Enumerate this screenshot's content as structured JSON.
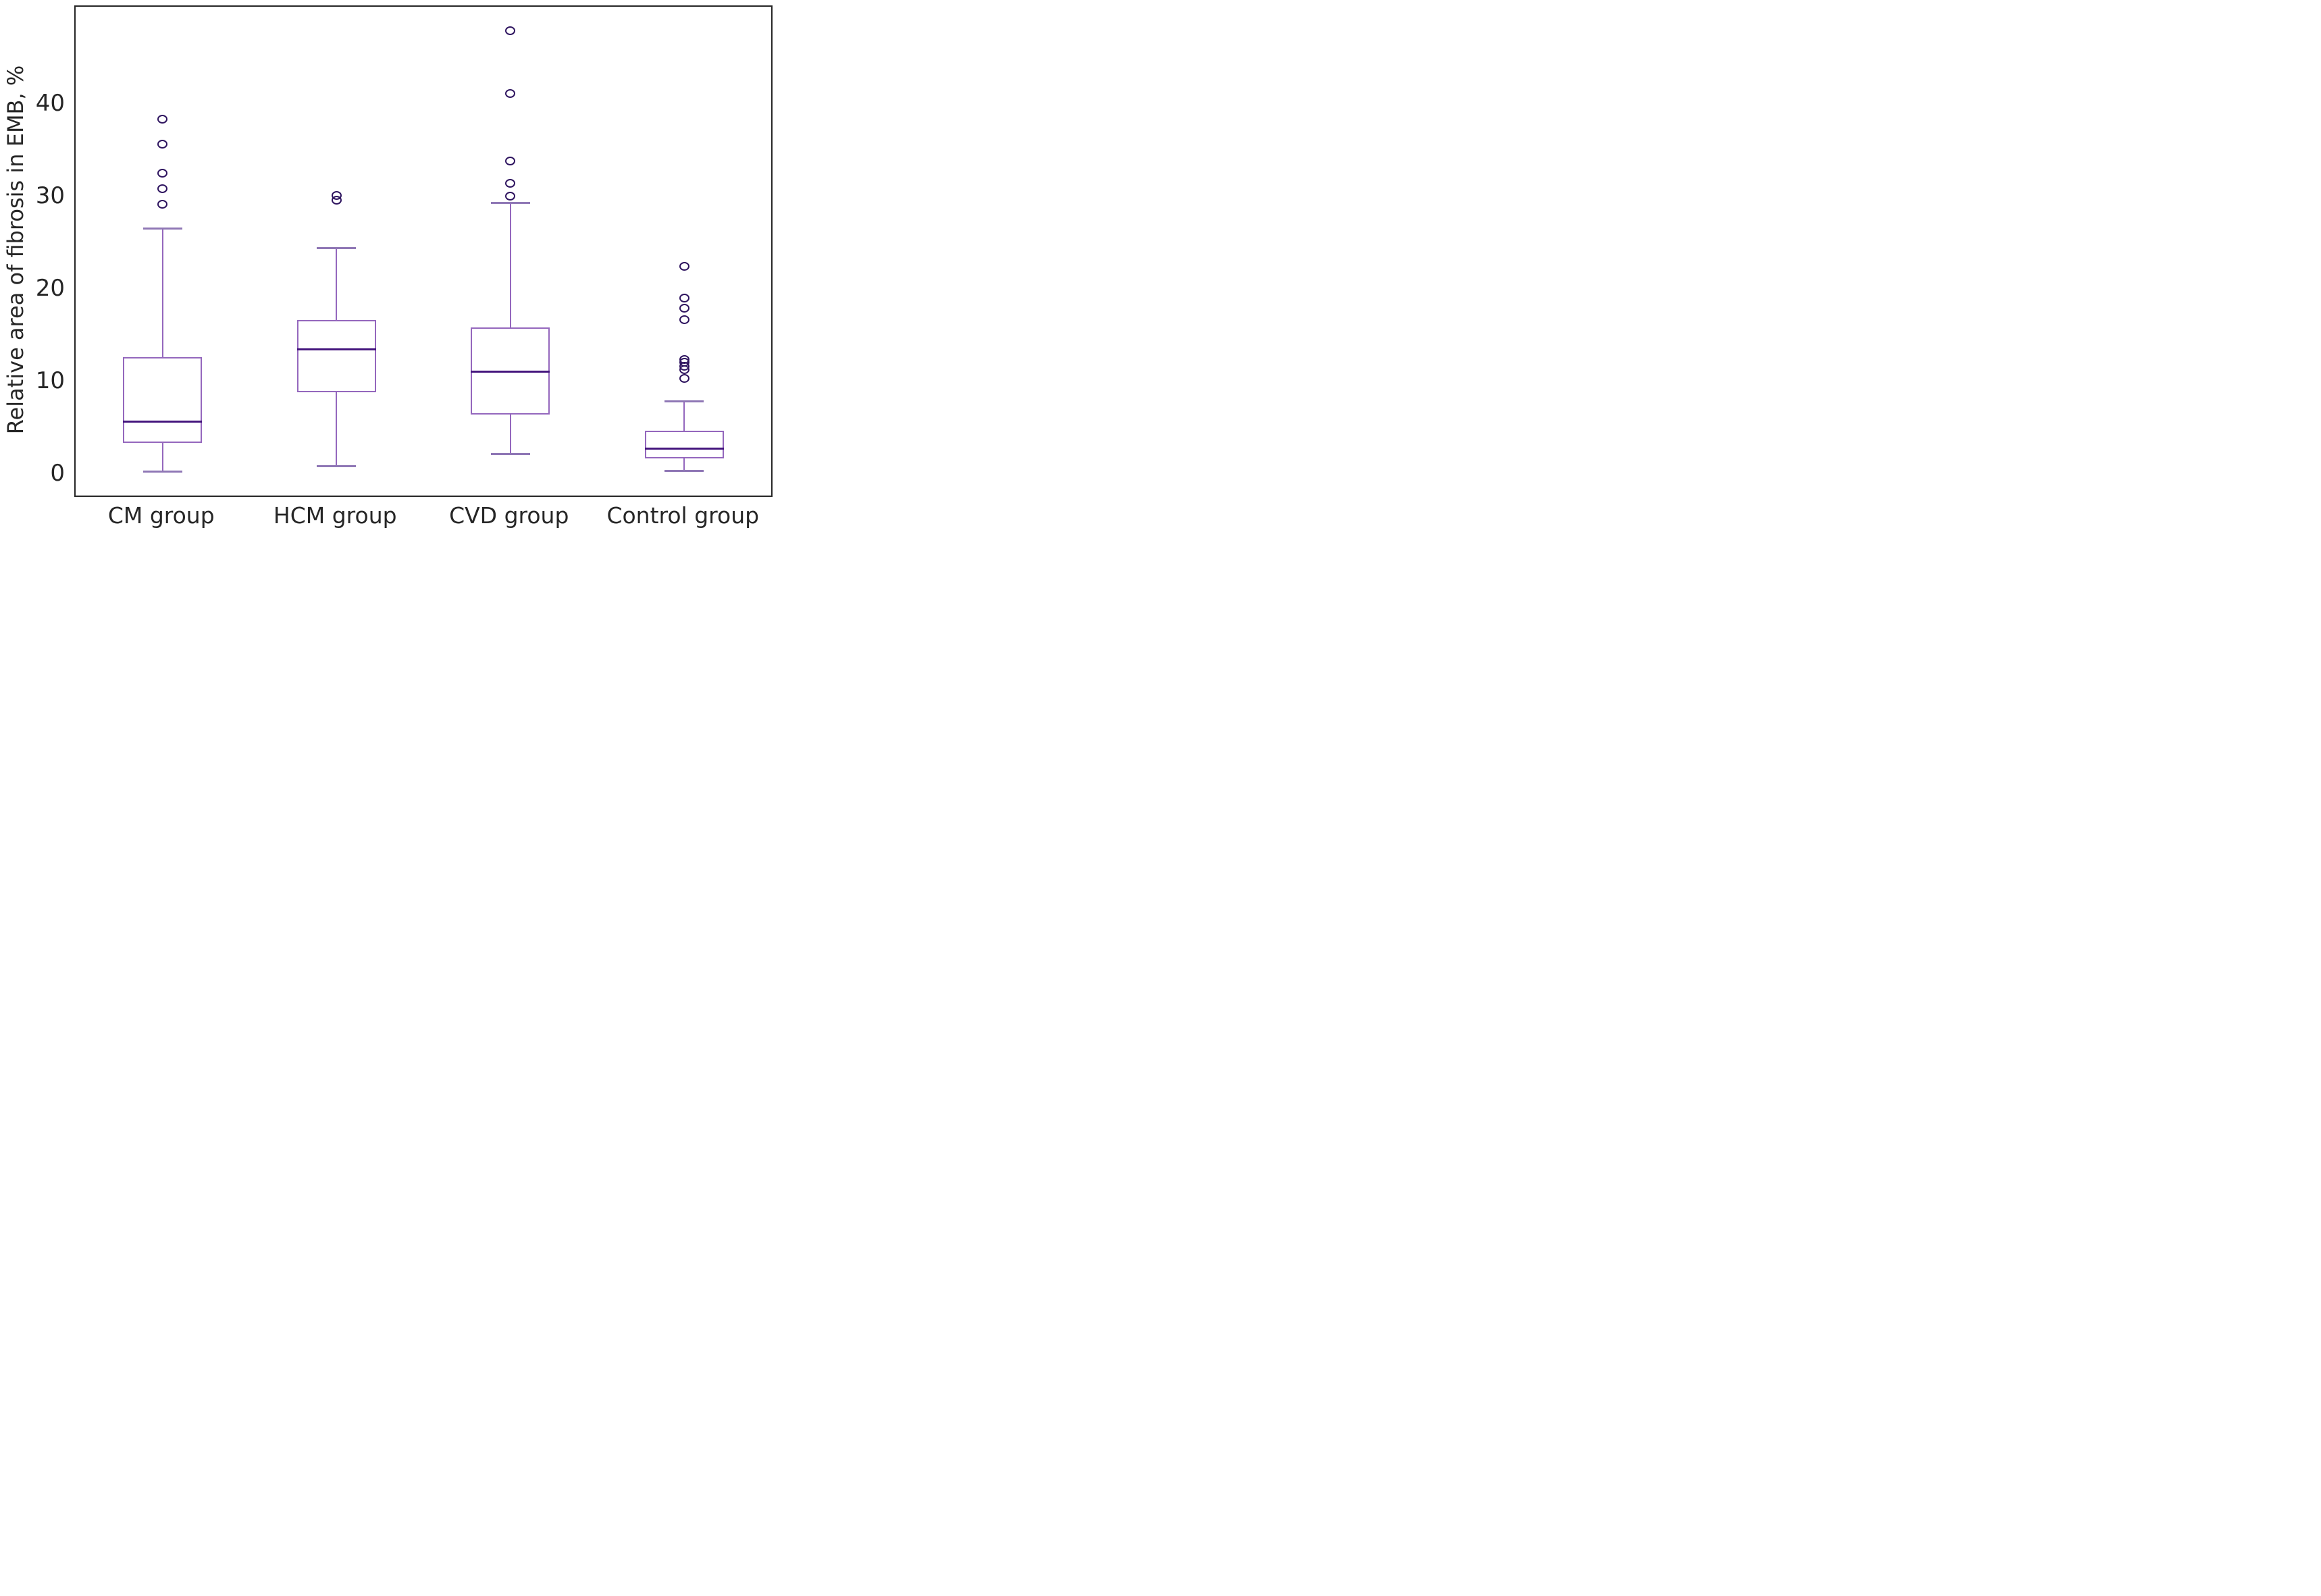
{
  "chart_data": {
    "type": "box",
    "title": "",
    "xlabel": "",
    "ylabel": "Relative area of fibrosis in EMB, %",
    "categories": [
      "CM group",
      "HCM group",
      "CVD group",
      "Control group"
    ],
    "yticks": [
      0,
      10,
      20,
      30,
      40
    ],
    "ylim": [
      -2.3,
      50.6
    ],
    "grid": false,
    "legend": false,
    "series": [
      {
        "name": "CM group",
        "whisker_low": 0.3,
        "q1": 3.4,
        "median": 5.7,
        "q3": 12.7,
        "whisker_high": 26.6,
        "outliers": [
          29.2,
          30.9,
          32.6,
          35.7,
          38.4
        ]
      },
      {
        "name": "HCM group",
        "whisker_low": 0.9,
        "q1": 8.9,
        "median": 13.5,
        "q3": 16.7,
        "whisker_high": 24.5,
        "outliers": [
          29.7,
          30.2
        ]
      },
      {
        "name": "CVD group",
        "whisker_low": 2.2,
        "q1": 6.5,
        "median": 11.1,
        "q3": 15.9,
        "whisker_high": 29.4,
        "outliers": [
          30.1,
          31.5,
          33.9,
          41.2,
          48.0
        ]
      },
      {
        "name": "Control group",
        "whisker_low": 0.4,
        "q1": 1.7,
        "median": 2.8,
        "q3": 4.7,
        "whisker_high": 7.9,
        "outliers": [
          10.4,
          11.3,
          11.7,
          12.1,
          12.4,
          16.7,
          18.0,
          19.1,
          22.5
        ]
      }
    ],
    "colors": {
      "box_edge": "#9467bd",
      "whisker": "#9467bd",
      "cap": "#8f77b5",
      "median": "#44157d",
      "outlier_edge": "#2e145f",
      "frame": "#262626",
      "text": "#262626"
    }
  }
}
